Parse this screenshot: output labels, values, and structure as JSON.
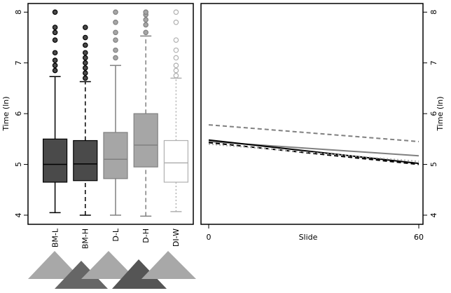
{
  "chart_data": [
    {
      "type": "box",
      "ylabel": "Time (ln)",
      "categories": [
        "BM-L",
        "BM-H",
        "D-L",
        "D-H",
        "DI-W"
      ],
      "boxes": [
        {
          "min": 4.05,
          "q1": 4.65,
          "median": 5.0,
          "q3": 5.5,
          "max": 6.73,
          "outliers": [
            6.85,
            6.95,
            7.05,
            7.2,
            7.45,
            7.6,
            7.7,
            8.0
          ],
          "fill": "#4a4a4a",
          "stroke": "#000000",
          "dash": "solid"
        },
        {
          "min": 4.0,
          "q1": 4.68,
          "median": 5.01,
          "q3": 5.47,
          "max": 6.63,
          "outliers": [
            6.7,
            6.8,
            6.9,
            7.0,
            7.1,
            7.2,
            7.35,
            7.5,
            7.7
          ],
          "fill": "#4a4a4a",
          "stroke": "#000000",
          "dash": "dashed"
        },
        {
          "min": 4.0,
          "q1": 4.72,
          "median": 5.1,
          "q3": 5.63,
          "max": 6.95,
          "outliers": [
            7.1,
            7.25,
            7.45,
            7.6,
            7.8,
            8.0
          ],
          "fill": "#a6a6a6",
          "stroke": "#808080",
          "dash": "solid"
        },
        {
          "min": 3.98,
          "q1": 4.95,
          "median": 5.38,
          "q3": 6.0,
          "max": 7.53,
          "outliers": [
            7.6,
            7.75,
            7.85,
            7.95,
            8.0
          ],
          "fill": "#a6a6a6",
          "stroke": "#808080",
          "dash": "dashed"
        },
        {
          "min": 4.07,
          "q1": 4.65,
          "median": 5.03,
          "q3": 5.47,
          "max": 6.7,
          "outliers": [
            6.75,
            6.85,
            6.95,
            7.1,
            7.25,
            7.45,
            7.8,
            8.0
          ],
          "fill": "#ffffff",
          "stroke": "#b0b0b0",
          "dash": "dotted"
        }
      ],
      "ylim": [
        3.82,
        8.17
      ],
      "yticks": [
        4,
        5,
        6,
        7,
        8
      ]
    },
    {
      "type": "line",
      "ylabel": "Time (ln)",
      "xlabel": "Slide",
      "x": [
        0,
        60
      ],
      "series": [
        {
          "color": "#808080",
          "dash": "dashed",
          "values": [
            5.78,
            5.45
          ]
        },
        {
          "color": "#808080",
          "dash": "solid",
          "values": [
            5.45,
            5.17
          ]
        },
        {
          "color": "#000000",
          "dash": "solid",
          "values": [
            5.48,
            5.02
          ]
        },
        {
          "color": "#000000",
          "dash": "dashed",
          "values": [
            5.43,
            5.0
          ]
        },
        {
          "color": "#b0b0b0",
          "dash": "dotted",
          "values": [
            5.4,
            5.06
          ]
        }
      ],
      "xlim": [
        -2.2,
        61.2
      ],
      "xticks": [
        0,
        60
      ],
      "ylim": [
        3.82,
        8.17
      ],
      "yticks": [
        4,
        5,
        6,
        7,
        8
      ]
    }
  ]
}
